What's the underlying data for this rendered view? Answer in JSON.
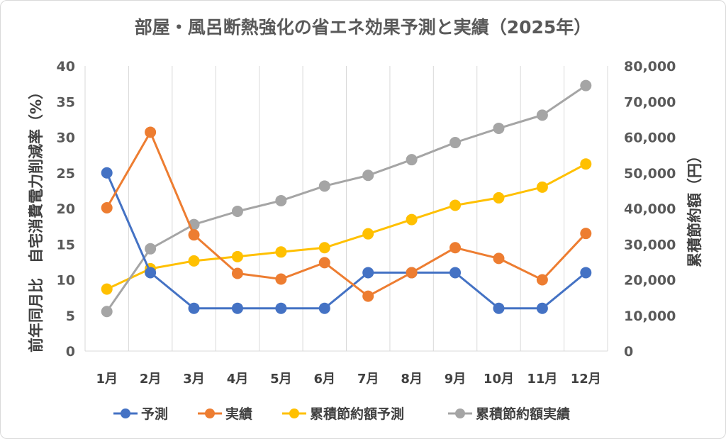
{
  "chart_data": {
    "type": "line",
    "title": "部屋・風呂断熱強化の省エネ効果予測と実績（2025年）",
    "categories": [
      "1月",
      "2月",
      "3月",
      "4月",
      "5月",
      "6月",
      "7月",
      "8月",
      "9月",
      "10月",
      "11月",
      "12月"
    ],
    "y_left": {
      "label": "前年同月比　自宅消費電力削減率（%）",
      "range": [
        0,
        40
      ],
      "ticks": [
        "0",
        "5",
        "10",
        "15",
        "20",
        "25",
        "30",
        "35",
        "40"
      ]
    },
    "y_right": {
      "label": "累積節約額（円）",
      "range": [
        0,
        80000
      ],
      "ticks": [
        "0",
        "10,000",
        "20,000",
        "30,000",
        "40,000",
        "50,000",
        "60,000",
        "70,000",
        "80,000"
      ]
    },
    "grid": "vertical",
    "legend_position": "bottom",
    "series": [
      {
        "name": "予測",
        "axis": "left",
        "color": "#4472c4",
        "values": [
          25,
          11,
          6,
          6,
          6,
          6,
          11,
          11,
          11,
          6,
          6,
          11
        ]
      },
      {
        "name": "実績",
        "axis": "left",
        "color": "#ed7d31",
        "values": [
          20.1,
          30.7,
          16.3,
          10.9,
          10.1,
          12.4,
          7.7,
          11,
          14.5,
          13,
          10,
          16.5
        ]
      },
      {
        "name": "累積節約額予測",
        "axis": "right",
        "color": "#ffc000",
        "values": [
          17400,
          23100,
          25300,
          26500,
          27800,
          29000,
          32900,
          36900,
          40900,
          43000,
          46000,
          52500
        ]
      },
      {
        "name": "累積節約額実績",
        "axis": "right",
        "color": "#a5a5a5",
        "values": [
          11100,
          28700,
          35500,
          39200,
          42200,
          46300,
          49300,
          53700,
          58500,
          62500,
          66200,
          74500
        ]
      }
    ]
  }
}
